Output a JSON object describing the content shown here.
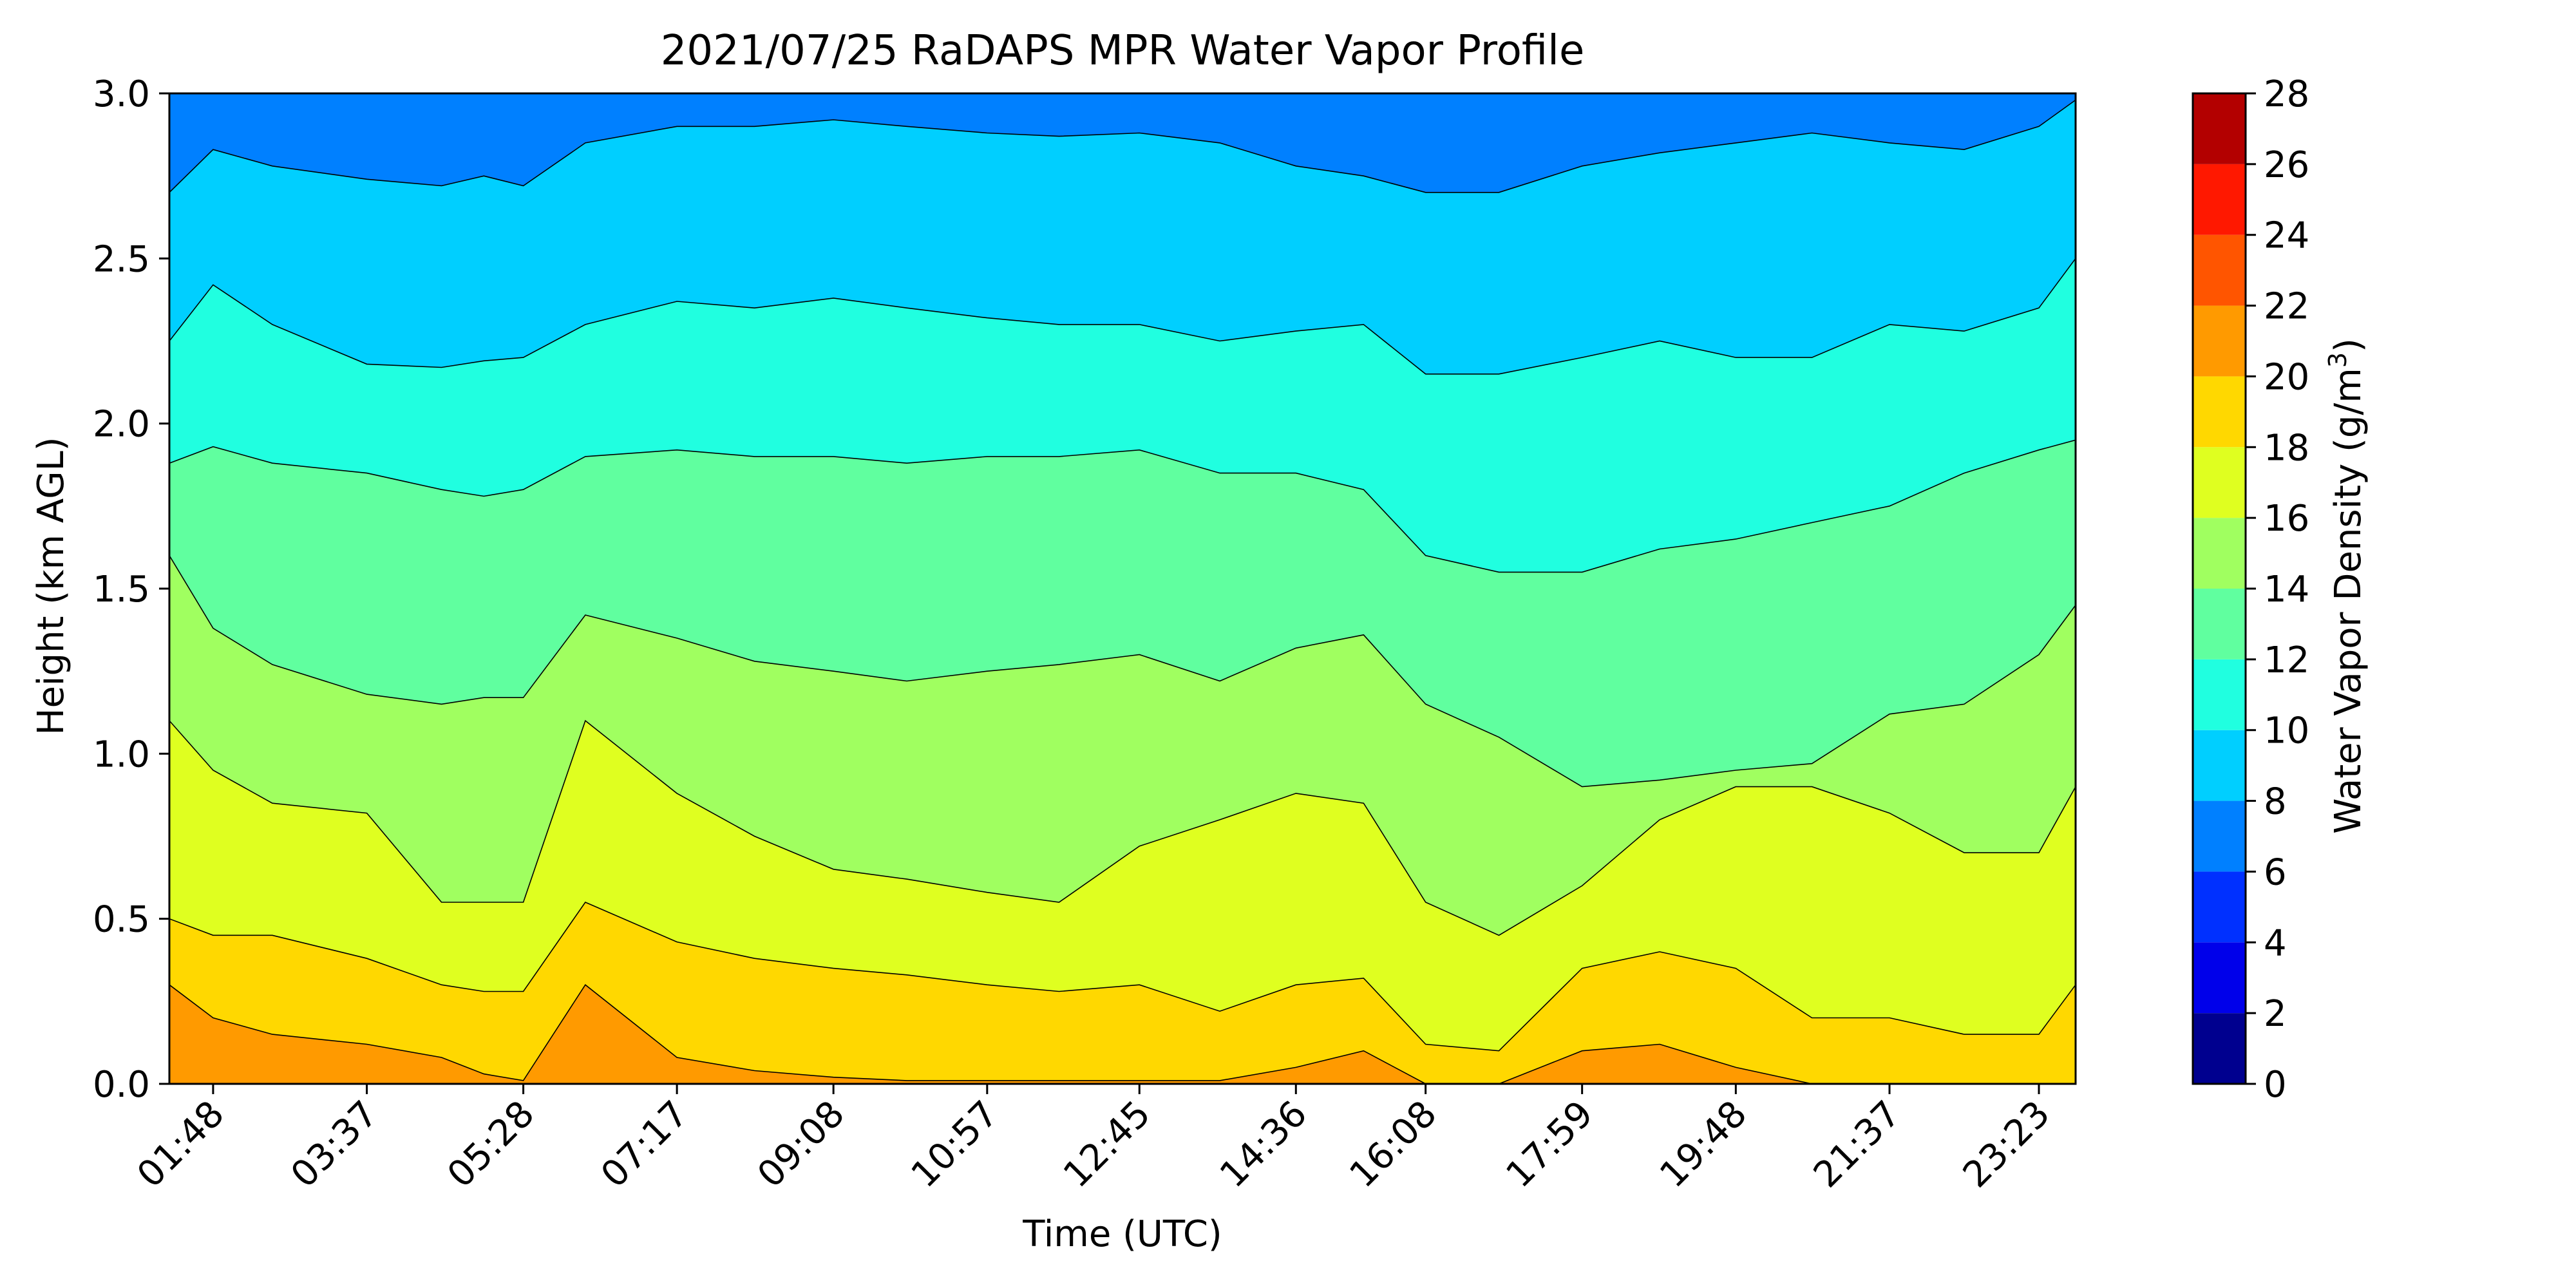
{
  "chart_data": {
    "type": "heatmap",
    "subtype": "filled-contour",
    "title": "2021/07/25 RaDAPS MPR Water Vapor Profile",
    "xlabel": "Time (UTC)",
    "ylabel": "Height (km AGL)",
    "xticks": [
      "01:48",
      "03:37",
      "05:28",
      "07:17",
      "09:08",
      "10:57",
      "12:45",
      "14:36",
      "16:08",
      "17:59",
      "19:48",
      "21:37",
      "23:23"
    ],
    "xtick_values_hours": [
      1.8,
      3.617,
      5.467,
      7.283,
      9.133,
      10.95,
      12.75,
      14.6,
      16.133,
      17.983,
      19.8,
      21.617,
      23.383
    ],
    "xlim_hours": [
      1.283,
      23.817
    ],
    "yticks": [
      "0.0",
      "0.5",
      "1.0",
      "1.5",
      "2.0",
      "2.5",
      "3.0"
    ],
    "ylim": [
      0,
      3
    ],
    "colorbar": {
      "label": "Water Vapor Density (g/m³)",
      "label_main": "Water Vapor Density (g/m",
      "label_sup": "3",
      "label_end": ")",
      "levels": [
        0,
        2,
        4,
        6,
        8,
        10,
        12,
        14,
        16,
        18,
        20,
        22,
        24,
        26,
        28
      ],
      "tick_labels": [
        "0",
        "2",
        "4",
        "6",
        "8",
        "10",
        "12",
        "14",
        "16",
        "18",
        "20",
        "22",
        "24",
        "26",
        "28"
      ],
      "colors": [
        "#00008f",
        "#0000ea",
        "#0030ff",
        "#0080ff",
        "#00cfff",
        "#20ffe0",
        "#60ff9f",
        "#a0ff60",
        "#dfff20",
        "#ffd800",
        "#ff9a00",
        "#ff5500",
        "#ff1800",
        "#b30000"
      ]
    },
    "contour_boundaries_km": {
      "time_hours": [
        1.283,
        1.8,
        2.5,
        3.617,
        4.5,
        5.0,
        5.467,
        6.2,
        7.283,
        8.2,
        9.133,
        10.0,
        10.95,
        11.8,
        12.75,
        13.7,
        14.6,
        15.4,
        16.133,
        17.0,
        17.983,
        18.9,
        19.8,
        20.7,
        21.617,
        22.5,
        23.383,
        23.817
      ],
      "14_to_16": [
        1.6,
        1.38,
        1.27,
        1.18,
        1.15,
        1.17,
        1.17,
        1.42,
        1.35,
        1.28,
        1.25,
        1.22,
        1.25,
        1.27,
        1.3,
        1.22,
        1.32,
        1.36,
        1.15,
        1.05,
        0.9,
        0.92,
        0.95,
        0.97,
        1.12,
        1.15,
        1.3,
        1.45
      ],
      "12_to_14": [
        1.88,
        1.93,
        1.88,
        1.85,
        1.8,
        1.78,
        1.8,
        1.9,
        1.92,
        1.9,
        1.9,
        1.88,
        1.9,
        1.9,
        1.92,
        1.85,
        1.85,
        1.8,
        1.6,
        1.55,
        1.55,
        1.62,
        1.65,
        1.7,
        1.75,
        1.85,
        1.92,
        1.95
      ],
      "10_to_12": [
        2.25,
        2.42,
        2.3,
        2.18,
        2.17,
        2.19,
        2.2,
        2.3,
        2.37,
        2.35,
        2.38,
        2.35,
        2.32,
        2.3,
        2.3,
        2.25,
        2.28,
        2.3,
        2.15,
        2.15,
        2.2,
        2.25,
        2.2,
        2.2,
        2.3,
        2.28,
        2.35,
        2.5
      ],
      "8_to_10": [
        2.7,
        2.83,
        2.78,
        2.74,
        2.72,
        2.75,
        2.72,
        2.85,
        2.9,
        2.9,
        2.92,
        2.9,
        2.88,
        2.87,
        2.88,
        2.85,
        2.78,
        2.75,
        2.7,
        2.7,
        2.78,
        2.82,
        2.85,
        2.88,
        2.85,
        2.83,
        2.9,
        2.98
      ],
      "16_to_18": [
        1.1,
        0.95,
        0.85,
        0.82,
        0.55,
        0.55,
        0.55,
        1.1,
        0.88,
        0.75,
        0.65,
        0.62,
        0.58,
        0.55,
        0.72,
        0.8,
        0.88,
        0.85,
        0.55,
        0.45,
        0.6,
        0.8,
        0.9,
        0.9,
        0.82,
        0.7,
        0.7,
        0.9
      ],
      "18_to_20": [
        0.5,
        0.45,
        0.45,
        0.38,
        0.3,
        0.28,
        0.28,
        0.55,
        0.43,
        0.38,
        0.35,
        0.33,
        0.3,
        0.28,
        0.3,
        0.22,
        0.3,
        0.32,
        0.12,
        0.1,
        0.35,
        0.4,
        0.35,
        0.2,
        0.2,
        0.15,
        0.15,
        0.3
      ],
      "20_to_22": [
        0.3,
        0.2,
        0.15,
        0.12,
        0.08,
        0.03,
        0.01,
        0.3,
        0.08,
        0.04,
        0.02,
        0.01,
        0.01,
        0.01,
        0.01,
        0.01,
        0.05,
        0.1,
        0.0,
        0.0,
        0.1,
        0.12,
        0.05,
        0.0,
        0.0,
        0.0,
        0.0,
        0.0
      ]
    }
  }
}
